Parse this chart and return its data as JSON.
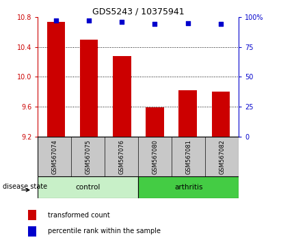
{
  "title": "GDS5243 / 10375941",
  "samples": [
    "GSM567074",
    "GSM567075",
    "GSM567076",
    "GSM567080",
    "GSM567081",
    "GSM567082"
  ],
  "bar_values": [
    10.73,
    10.5,
    10.28,
    9.59,
    9.82,
    9.8
  ],
  "percentile_values": [
    97,
    97,
    96,
    94,
    95,
    94
  ],
  "bar_color": "#cc0000",
  "dot_color": "#0000cc",
  "ylim_left": [
    9.2,
    10.8
  ],
  "ylim_right": [
    0,
    100
  ],
  "yticks_left": [
    9.2,
    9.6,
    10.0,
    10.4,
    10.8
  ],
  "yticks_right": [
    0,
    25,
    50,
    75,
    100
  ],
  "ytick_labels_right": [
    "0",
    "25",
    "50",
    "75",
    "100%"
  ],
  "grid_values": [
    9.6,
    10.0,
    10.4
  ],
  "disease_state_label": "disease state",
  "legend_bar_label": "transformed count",
  "legend_dot_label": "percentile rank within the sample",
  "bar_width": 0.55,
  "bg_color_samples": "#c8c8c8",
  "bg_color_control": "#c8f0c8",
  "bg_color_arthritis": "#44cc44",
  "control_label": "control",
  "arthritis_label": "arthritis",
  "n_control": 3,
  "n_arthritis": 3
}
